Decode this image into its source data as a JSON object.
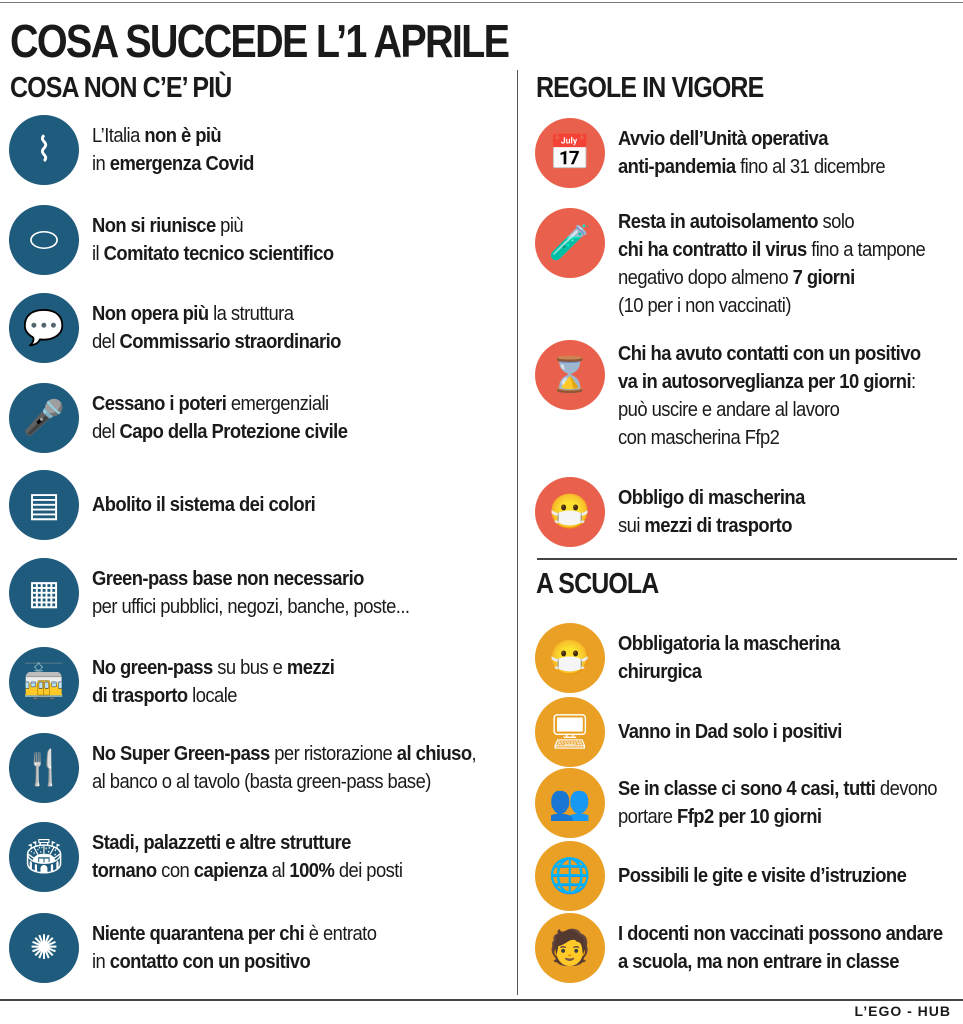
{
  "title": "COSA SUCCEDE L’1 APRILE",
  "colors": {
    "left": "#1f5b7c",
    "rules": "#e9614c",
    "school": "#e9a024"
  },
  "left": {
    "heading": "COSA NON C’E’ PIÙ",
    "items": [
      {
        "icon": "italy-map-icon",
        "glyph": "⌇",
        "lines": [
          [
            {
              "t": "L’Italia ",
              "b": false
            },
            {
              "t": "non è più",
              "b": true
            }
          ],
          [
            {
              "t": "in ",
              "b": false
            },
            {
              "t": "emergenza Covid",
              "b": true
            }
          ]
        ]
      },
      {
        "icon": "meeting-table-icon",
        "glyph": "⬭",
        "lines": [
          [
            {
              "t": "Non si riunisce",
              "b": true
            },
            {
              "t": " più",
              "b": false
            }
          ],
          [
            {
              "t": "il ",
              "b": false
            },
            {
              "t": "Comitato tecnico scientifico",
              "b": true
            }
          ]
        ]
      },
      {
        "icon": "speaker-icon",
        "glyph": "💬",
        "lines": [
          [
            {
              "t": "Non opera più",
              "b": true
            },
            {
              "t": " la struttura",
              "b": false
            }
          ],
          [
            {
              "t": "del ",
              "b": false
            },
            {
              "t": "Commissario straordinario",
              "b": true
            }
          ]
        ]
      },
      {
        "icon": "podium-icon",
        "glyph": "🎤",
        "lines": [
          [
            {
              "t": "Cessano i poteri",
              "b": true
            },
            {
              "t": " emergenziali",
              "b": false
            }
          ],
          [
            {
              "t": "del ",
              "b": false
            },
            {
              "t": "Capo della Protezione civile",
              "b": true
            }
          ]
        ]
      },
      {
        "icon": "document-icon",
        "glyph": "▤",
        "lines": [
          [
            {
              "t": "Abolito il sistema dei colori",
              "b": true
            }
          ]
        ]
      },
      {
        "icon": "building-icon",
        "glyph": "▦",
        "lines": [
          [
            {
              "t": "Green-pass base non necessario",
              "b": true
            }
          ],
          [
            {
              "t": "per uffici pubblici, negozi, banche, poste...",
              "b": false
            }
          ]
        ]
      },
      {
        "icon": "tram-icon",
        "glyph": "🚋",
        "lines": [
          [
            {
              "t": "No green-pass",
              "b": true
            },
            {
              "t": " su bus e ",
              "b": false
            },
            {
              "t": "mezzi",
              "b": true
            }
          ],
          [
            {
              "t": "di trasporto",
              "b": true
            },
            {
              "t": " locale",
              "b": false
            }
          ]
        ]
      },
      {
        "icon": "fork-knife-icon",
        "glyph": "🍴",
        "lines": [
          [
            {
              "t": "No Super Green-pass",
              "b": true
            },
            {
              "t": " per ristorazione ",
              "b": false
            },
            {
              "t": "al chiuso",
              "b": true
            },
            {
              "t": ",",
              "b": false
            }
          ],
          [
            {
              "t": "al banco o al tavolo (basta green-pass base)",
              "b": false
            }
          ]
        ]
      },
      {
        "icon": "stadium-icon",
        "glyph": "🏟",
        "lines": [
          [
            {
              "t": "Stadi, palazzetti e altre strutture",
              "b": true
            }
          ],
          [
            {
              "t": "tornano",
              "b": true
            },
            {
              "t": " con ",
              "b": false
            },
            {
              "t": "capienza",
              "b": true
            },
            {
              "t": " al ",
              "b": false
            },
            {
              "t": "100%",
              "b": true
            },
            {
              "t": " dei posti",
              "b": false
            }
          ]
        ]
      },
      {
        "icon": "virus-icon",
        "glyph": "✺",
        "lines": [
          [
            {
              "t": "Niente quarantena per chi",
              "b": true
            },
            {
              "t": " è entrato",
              "b": false
            }
          ],
          [
            {
              "t": "in ",
              "b": false
            },
            {
              "t": "contatto con un positivo",
              "b": true
            }
          ]
        ]
      }
    ]
  },
  "rules": {
    "heading": "REGOLE IN VIGORE",
    "items": [
      {
        "icon": "calendar-icon",
        "glyph": "📅",
        "lines": [
          [
            {
              "t": "Avvio dell’Unità operativa",
              "b": true
            }
          ],
          [
            {
              "t": "anti-pandemia",
              "b": true
            },
            {
              "t": " fino al 31 dicembre",
              "b": false
            }
          ]
        ]
      },
      {
        "icon": "test-tubes-icon",
        "glyph": "🧪",
        "lines": [
          [
            {
              "t": "Resta in autoisolamento",
              "b": true
            },
            {
              "t": " solo",
              "b": false
            }
          ],
          [
            {
              "t": "chi ha contratto il virus",
              "b": true
            },
            {
              "t": " fino a tampone",
              "b": false
            }
          ],
          [
            {
              "t": "negativo dopo almeno ",
              "b": false
            },
            {
              "t": "7 giorni",
              "b": true
            }
          ],
          [
            {
              "t": "(10 per i non vaccinati)",
              "b": false
            }
          ]
        ]
      },
      {
        "icon": "hourglass-icon",
        "glyph": "⌛",
        "lines": [
          [
            {
              "t": "Chi ha avuto contatti con un positivo",
              "b": true
            }
          ],
          [
            {
              "t": "va in autosorveglianza per 10 giorni",
              "b": true
            },
            {
              "t": ":",
              "b": false
            }
          ],
          [
            {
              "t": "può uscire e andare al lavoro",
              "b": false
            }
          ],
          [
            {
              "t": "con mascherina Ffp2",
              "b": false
            }
          ]
        ]
      },
      {
        "icon": "mask-icon",
        "glyph": "😷",
        "lines": [
          [
            {
              "t": "Obbligo di mascherina",
              "b": true
            }
          ],
          [
            {
              "t": "sui ",
              "b": false
            },
            {
              "t": "mezzi di trasporto",
              "b": true
            }
          ]
        ]
      }
    ]
  },
  "school": {
    "heading": "A SCUOLA",
    "items": [
      {
        "icon": "mask-icon",
        "glyph": "😷",
        "lines": [
          [
            {
              "t": "Obbligatoria la mascherina",
              "b": true
            }
          ],
          [
            {
              "t": "chirurgica",
              "b": true
            }
          ]
        ]
      },
      {
        "icon": "monitor-icon",
        "glyph": "🖥",
        "lines": [
          [
            {
              "t": "Vanno in Dad solo i positivi",
              "b": true
            }
          ]
        ]
      },
      {
        "icon": "people-icon",
        "glyph": "👥",
        "lines": [
          [
            {
              "t": "Se in classe ci sono 4 casi, tutti",
              "b": true
            },
            {
              "t": " devono",
              "b": false
            }
          ],
          [
            {
              "t": "portare ",
              "b": false
            },
            {
              "t": "Ffp2 per 10 giorni",
              "b": true
            }
          ]
        ]
      },
      {
        "icon": "globe-icon",
        "glyph": "🌐",
        "lines": [
          [
            {
              "t": "Possibili le gite e visite d’istruzione",
              "b": true
            }
          ]
        ]
      },
      {
        "icon": "teacher-icon",
        "glyph": "🧑",
        "lines": [
          [
            {
              "t": "I docenti non vaccinati possono andare",
              "b": true
            }
          ],
          [
            {
              "t": "a scuola, ma non entrare in classe",
              "b": true
            }
          ]
        ]
      }
    ]
  },
  "credit": "L’EGO - HUB"
}
